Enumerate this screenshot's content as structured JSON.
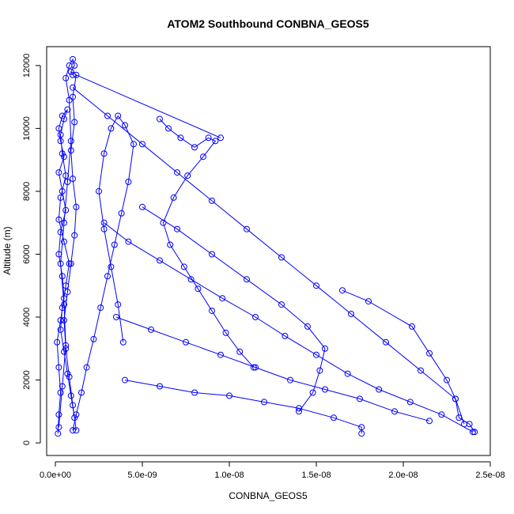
{
  "chart_data": {
    "type": "line",
    "title": "ATOM2 Southbound CONBNA_GEOS5",
    "xlabel": "CONBNA_GEOS5",
    "ylabel": "Altitude (m)",
    "xlim": [
      -5e-10,
      2.5e-08
    ],
    "ylim": [
      -400,
      12600
    ],
    "x_ticks": [
      0,
      5e-09,
      1e-08,
      1.5e-08,
      2e-08,
      2.5e-08
    ],
    "x_tick_labels": [
      "0.0e+00",
      "5.0e-09",
      "1.0e-08",
      "1.5e-08",
      "2.0e-08",
      "2.5e-08"
    ],
    "y_ticks": [
      0,
      2000,
      4000,
      6000,
      8000,
      10000,
      12000
    ],
    "y_tick_labels": [
      "0",
      "2000",
      "4000",
      "6000",
      "8000",
      "10000",
      "12000"
    ],
    "grid": false,
    "legend": "none",
    "line_style": "line with open circle markers",
    "series": [
      {
        "color": "#0000ff",
        "x": [
          1.5e-10,
          2e-10,
          3e-10,
          2e-10,
          1e-10,
          3e-10,
          5e-10,
          4e-10,
          2e-10,
          3e-10,
          6e-10,
          4e-10,
          2e-10,
          5e-10,
          3e-10,
          2e-10,
          4e-10,
          7e-10,
          5e-10,
          3e-10,
          4e-10,
          6e-10,
          3e-10,
          2e-10,
          5e-10,
          8e-10,
          6e-10,
          4e-10,
          3e-10,
          5e-10,
          7e-10,
          9e-10,
          1.1e-09,
          1.2e-09,
          1e-09,
          8e-10,
          6e-10,
          5e-10,
          7e-10,
          9e-10,
          1.1e-09,
          1.2e-09,
          1e-09,
          9e-10,
          1.1e-09,
          1e-09,
          1.2e-09,
          9.5e-09
        ],
        "y": [
          300,
          900,
          1600,
          2400,
          3200,
          3900,
          4600,
          5300,
          6000,
          6700,
          7400,
          8000,
          8600,
          9100,
          9600,
          10000,
          10400,
          10600,
          10300,
          9800,
          9200,
          8500,
          7800,
          7100,
          6400,
          5700,
          5000,
          4300,
          3600,
          2900,
          2200,
          1500,
          800,
          400,
          1200,
          2100,
          3000,
          3900,
          4800,
          5700,
          6600,
          7500,
          8400,
          9300,
          10200,
          11000,
          11700,
          9700
        ]
      },
      {
        "color": "#0000ff",
        "x": [
          2e-10,
          4e-10,
          6e-10,
          5e-10,
          3e-10,
          5e-10,
          7e-10,
          9e-10,
          8e-10,
          6e-10,
          8e-10,
          1e-09,
          1.1e-09,
          9e-10,
          1e-09
        ],
        "y": [
          500,
          1800,
          3100,
          4400,
          5700,
          7000,
          8300,
          9600,
          10900,
          11600,
          12000,
          12200,
          12000,
          11800,
          11700
        ]
      },
      {
        "color": "#0000ff",
        "x": [
          1e-09,
          1.2e-09,
          1.5e-09,
          1.8e-09,
          2.2e-09,
          2.6e-09,
          3e-09,
          3.4e-09,
          3.8e-09,
          4.2e-09,
          4.5e-09,
          4e-09,
          3.6e-09,
          3.2e-09,
          2.8e-09,
          2.5e-09,
          2.8e-09,
          3.2e-09,
          3.6e-09,
          3.9e-09
        ],
        "y": [
          400,
          900,
          1600,
          2400,
          3300,
          4300,
          5300,
          6300,
          7300,
          8300,
          9500,
          10100,
          10400,
          10000,
          9200,
          8000,
          6800,
          5600,
          4400,
          3200
        ]
      },
      {
        "color": "#0000ff",
        "x": [
          2.8e-09,
          4.2e-09,
          6e-09,
          7.8e-09,
          9.6e-09,
          1.15e-08,
          1.32e-08,
          1.5e-08,
          1.68e-08,
          1.86e-08,
          2.04e-08,
          2.22e-08,
          2.4e-08
        ],
        "y": [
          7000,
          6400,
          5800,
          5200,
          4600,
          4000,
          3400,
          2800,
          2200,
          1700,
          1300,
          900,
          350
        ]
      },
      {
        "color": "#0000ff",
        "x": [
          6e-09,
          6.5e-09,
          7.2e-09,
          8e-09,
          8.8e-09,
          9.2e-09,
          8.5e-09,
          7.6e-09,
          6.8e-09,
          6.2e-09,
          6.6e-09,
          7.4e-09,
          8.2e-09,
          9e-09,
          9.8e-09,
          1.06e-08,
          1.14e-08
        ],
        "y": [
          10300,
          10000,
          9700,
          9400,
          9700,
          9600,
          9100,
          8500,
          7800,
          7000,
          6300,
          5600,
          4900,
          4200,
          3500,
          2900,
          2400
        ]
      },
      {
        "color": "#0000ff",
        "x": [
          1e-09,
          3e-09,
          5e-09,
          7e-09,
          9e-09,
          1.1e-08,
          1.3e-08,
          1.5e-08,
          1.7e-08,
          1.9e-08,
          2.1e-08,
          2.3e-08,
          2.35e-08
        ],
        "y": [
          11300,
          10400,
          9500,
          8600,
          7700,
          6800,
          5900,
          5000,
          4100,
          3200,
          2300,
          1400,
          600
        ]
      },
      {
        "color": "#0000ff",
        "x": [
          3.5e-09,
          5.5e-09,
          7.5e-09,
          9.5e-09,
          1.15e-08,
          1.35e-08,
          1.55e-08,
          1.75e-08,
          1.95e-08,
          2.15e-08
        ],
        "y": [
          4000,
          3600,
          3200,
          2800,
          2400,
          2000,
          1700,
          1400,
          1000,
          700
        ]
      },
      {
        "color": "#0000ff",
        "x": [
          4e-09,
          6e-09,
          8e-09,
          1e-08,
          1.2e-08,
          1.4e-08,
          1.6e-08,
          1.76e-08,
          1.76e-08
        ],
        "y": [
          2000,
          1800,
          1600,
          1500,
          1300,
          1100,
          800,
          500,
          300
        ]
      },
      {
        "color": "#0000ff",
        "x": [
          5e-09,
          7e-09,
          9e-09,
          1.1e-08,
          1.3e-08,
          1.45e-08,
          1.55e-08,
          1.52e-08,
          1.48e-08,
          1.4e-08
        ],
        "y": [
          7500,
          6800,
          6000,
          5200,
          4400,
          3700,
          3000,
          2300,
          1600,
          1000
        ]
      },
      {
        "color": "#0000ff",
        "x": [
          1.65e-08,
          1.8e-08,
          2.05e-08,
          2.15e-08,
          2.25e-08,
          2.3e-08,
          2.32e-08,
          2.38e-08,
          2.41e-08
        ],
        "y": [
          4850,
          4500,
          3700,
          2850,
          2000,
          1400,
          800,
          600,
          350
        ]
      }
    ]
  }
}
